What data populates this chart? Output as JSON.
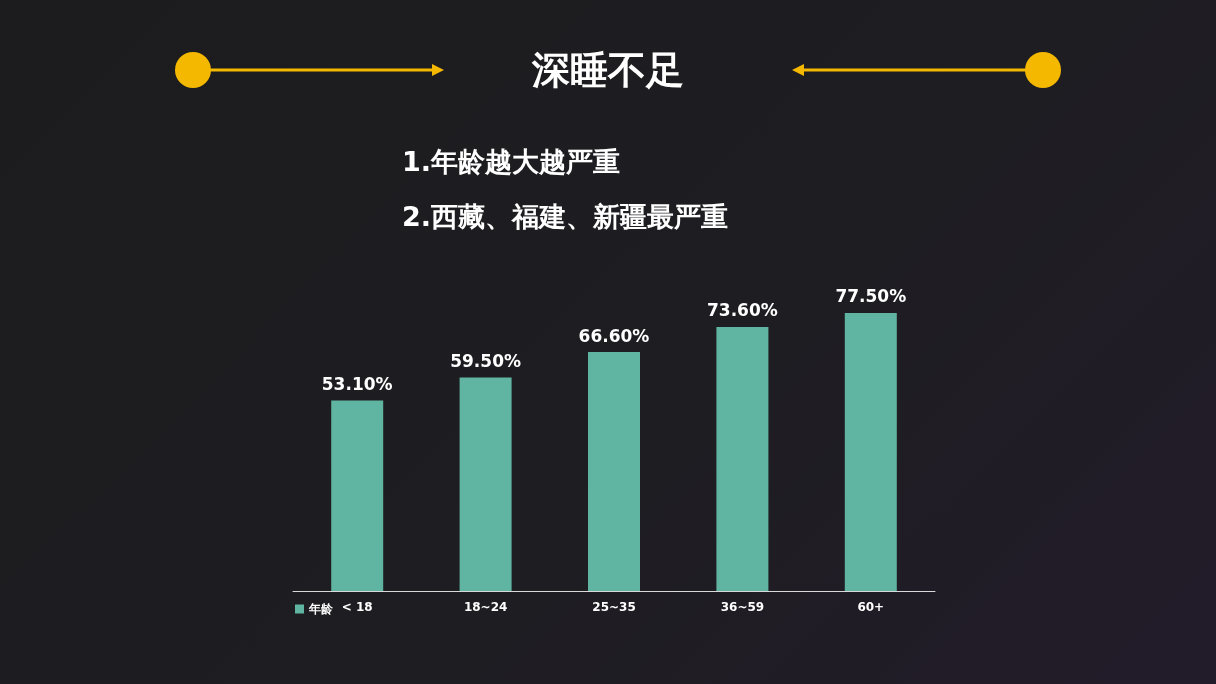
{
  "chart_data": {
    "type": "bar",
    "title": "深睡不足",
    "annotations": [
      "1.年龄越大越严重",
      "2.西藏、福建、新疆最严重"
    ],
    "categories": [
      "< 18",
      "18~24",
      "25~35",
      "36~59",
      "60+"
    ],
    "series": [
      {
        "name": "年龄",
        "color": "#5fb5a1",
        "values": [
          53.1,
          59.5,
          66.6,
          73.6,
          77.5
        ],
        "value_labels": [
          "53.10%",
          "59.50%",
          "66.60%",
          "73.60%",
          "77.50%"
        ]
      }
    ],
    "legend": "bottom left"
  }
}
